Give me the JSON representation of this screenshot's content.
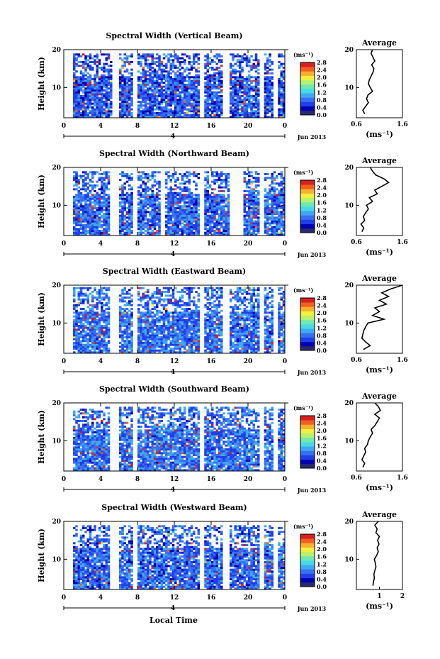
{
  "figure": {
    "xlabel": "Local Time",
    "date_label": "Jun 2013",
    "day_label": "4",
    "ylabel": "Height (km)",
    "average_title": "Average",
    "unit_label": "(ms⁻¹)"
  },
  "colormap": [
    "#2a2a6a",
    "#0000b0",
    "#1f3fe8",
    "#3a6ef0",
    "#40a8f0",
    "#48d8e8",
    "#70e8b0",
    "#b8f070",
    "#f0f040",
    "#f8b030",
    "#f06020",
    "#d82020"
  ],
  "chart_data": [
    {
      "type": "heatmap",
      "title": "Spectral Width (Vertical Beam)",
      "xlabel": "",
      "ylabel": "Height (km)",
      "x_ticks": [
        "0",
        "4",
        "8",
        "12",
        "16",
        "20",
        "0"
      ],
      "y_ticks": [
        "10",
        "20"
      ],
      "xlim": [
        0,
        24
      ],
      "ylim": [
        2,
        20
      ],
      "colorbar": {
        "ticks": [
          "0.0",
          "0.4",
          "0.8",
          "1.2",
          "1.6",
          "2.0",
          "2.4",
          "2.8"
        ],
        "range": [
          0,
          2.8
        ]
      },
      "gaps_hours": [
        [
          0,
          1
        ],
        [
          5.2,
          6.0
        ],
        [
          7.5,
          8.0
        ],
        [
          14.8,
          15.3
        ],
        [
          17.3,
          18.0
        ],
        [
          21.2,
          21.8
        ],
        [
          22.7,
          23.2
        ]
      ],
      "typical_width": 0.7,
      "upper_cutoff_km": 19,
      "average": {
        "xlim": [
          0.6,
          1.6
        ],
        "x_ticks": [
          "0.6",
          "1.6"
        ],
        "y_ticks": [
          "10",
          "20"
        ],
        "heights": [
          3,
          4,
          5,
          6,
          7,
          8,
          9,
          10,
          11,
          12,
          13,
          14,
          15,
          16,
          17,
          18,
          19,
          20
        ],
        "values": [
          0.78,
          0.74,
          0.8,
          0.86,
          0.82,
          0.85,
          0.95,
          0.9,
          0.86,
          0.88,
          0.92,
          0.96,
          0.98,
          0.93,
          1.0,
          0.96,
          0.92,
          0.95
        ]
      }
    },
    {
      "type": "heatmap",
      "title": "Spectral Width (Northward Beam)",
      "xlabel": "",
      "ylabel": "Height (km)",
      "x_ticks": [
        "0",
        "4",
        "8",
        "12",
        "16",
        "20",
        "0"
      ],
      "y_ticks": [
        "10",
        "20"
      ],
      "xlim": [
        0,
        24
      ],
      "ylim": [
        2,
        20
      ],
      "colorbar": {
        "ticks": [
          "0.0",
          "0.4",
          "0.8",
          "1.2",
          "1.6",
          "2.0",
          "2.4",
          "2.8"
        ],
        "range": [
          0,
          2.8
        ]
      },
      "gaps_hours": [
        [
          0,
          1
        ],
        [
          5.0,
          6.0
        ],
        [
          7.5,
          8.0
        ],
        [
          10.5,
          11
        ],
        [
          14.8,
          15.3
        ],
        [
          18.0,
          19.6
        ],
        [
          21.2,
          21.8
        ]
      ],
      "typical_width": 0.75,
      "upper_cutoff_km": 19,
      "average": {
        "xlim": [
          0.6,
          1.6
        ],
        "x_ticks": [
          "0.6",
          "1.6"
        ],
        "y_ticks": [
          "10",
          "20"
        ],
        "heights": [
          3,
          4,
          5,
          6,
          7,
          8,
          9,
          10,
          11,
          12,
          13,
          14,
          15,
          16,
          17,
          18,
          19,
          20
        ],
        "values": [
          0.72,
          0.76,
          0.7,
          0.78,
          0.75,
          0.8,
          0.86,
          0.82,
          0.95,
          0.88,
          1.05,
          1.0,
          1.15,
          1.3,
          1.2,
          1.02,
          0.95,
          0.9
        ]
      }
    },
    {
      "type": "heatmap",
      "title": "Spectral Width (Eastward Beam)",
      "xlabel": "",
      "ylabel": "Height (km)",
      "x_ticks": [
        "0",
        "4",
        "8",
        "12",
        "16",
        "20",
        "0"
      ],
      "y_ticks": [
        "10",
        "20"
      ],
      "xlim": [
        0,
        24
      ],
      "ylim": [
        2,
        20
      ],
      "colorbar": {
        "ticks": [
          "0.0",
          "0.4",
          "0.8",
          "1.2",
          "1.6",
          "2.0",
          "2.4",
          "2.8"
        ],
        "range": [
          0,
          2.8
        ]
      },
      "gaps_hours": [
        [
          0,
          1
        ],
        [
          5.0,
          6.0
        ],
        [
          7.5,
          8.0
        ],
        [
          14.8,
          15.3
        ],
        [
          17.3,
          18.0
        ],
        [
          21.2,
          21.8
        ],
        [
          22.7,
          23.2
        ]
      ],
      "typical_width": 0.8,
      "upper_cutoff_km": 19.5,
      "average": {
        "xlim": [
          0.6,
          1.6
        ],
        "x_ticks": [
          "0.6",
          "1.6"
        ],
        "y_ticks": [
          "10",
          "20"
        ],
        "heights": [
          3,
          4,
          5,
          6,
          7,
          8,
          9,
          10,
          11,
          12,
          13,
          14,
          15,
          16,
          17,
          18,
          19,
          20
        ],
        "values": [
          0.75,
          0.9,
          0.8,
          0.72,
          0.74,
          0.76,
          0.8,
          0.85,
          1.2,
          0.95,
          1.1,
          1.0,
          1.25,
          1.1,
          1.3,
          1.15,
          1.35,
          1.6
        ]
      }
    },
    {
      "type": "heatmap",
      "title": "Spectral Width (Southward Beam)",
      "xlabel": "",
      "ylabel": "Height (km)",
      "x_ticks": [
        "0",
        "4",
        "8",
        "12",
        "16",
        "20",
        "0"
      ],
      "y_ticks": [
        "10",
        "20"
      ],
      "xlim": [
        0,
        24
      ],
      "ylim": [
        2,
        20
      ],
      "colorbar": {
        "ticks": [
          "0.0",
          "0.4",
          "0.8",
          "1.2",
          "1.6",
          "2.0",
          "2.4",
          "2.8"
        ],
        "range": [
          0,
          2.8
        ]
      },
      "gaps_hours": [
        [
          0,
          1
        ],
        [
          5.0,
          6.0
        ],
        [
          7.5,
          8.0
        ],
        [
          14.8,
          15.3
        ],
        [
          21.2,
          21.8
        ],
        [
          22.7,
          23.2
        ]
      ],
      "typical_width": 0.8,
      "upper_cutoff_km": 19,
      "average": {
        "xlim": [
          0.6,
          1.6
        ],
        "x_ticks": [
          "0.6",
          "1.6"
        ],
        "y_ticks": [
          "10",
          "20"
        ],
        "heights": [
          3,
          4,
          5,
          6,
          7,
          8,
          9,
          10,
          11,
          12,
          13,
          14,
          15,
          16,
          17,
          18,
          19,
          20
        ],
        "values": [
          0.74,
          0.78,
          0.72,
          0.76,
          0.8,
          0.78,
          0.84,
          0.86,
          0.9,
          0.95,
          0.92,
          1.0,
          1.05,
          1.1,
          1.0,
          1.12,
          1.08,
          1.0
        ]
      }
    },
    {
      "type": "heatmap",
      "title": "Spectral Width (Westward Beam)",
      "xlabel": "Local Time",
      "ylabel": "Height (km)",
      "x_ticks": [
        "0",
        "4",
        "8",
        "12",
        "16",
        "20",
        "0"
      ],
      "y_ticks": [
        "10",
        "20"
      ],
      "xlim": [
        0,
        24
      ],
      "ylim": [
        2,
        20
      ],
      "colorbar": {
        "ticks": [
          "0.0",
          "0.4",
          "0.8",
          "1.2",
          "1.6",
          "2.0",
          "2.4",
          "2.8"
        ],
        "range": [
          0,
          2.8
        ]
      },
      "gaps_hours": [
        [
          0,
          1
        ],
        [
          5.0,
          6.0
        ],
        [
          7.5,
          8.0
        ],
        [
          14.8,
          15.3
        ],
        [
          17.3,
          18.0
        ],
        [
          21.2,
          21.8
        ],
        [
          22.7,
          23.2
        ]
      ],
      "typical_width": 0.75,
      "upper_cutoff_km": 19,
      "average": {
        "xlim": [
          0,
          2
        ],
        "x_ticks": [
          "1",
          "2"
        ],
        "y_ticks": [
          "10",
          "20"
        ],
        "heights": [
          3,
          4,
          5,
          6,
          7,
          8,
          9,
          10,
          11,
          12,
          13,
          14,
          15,
          16,
          17,
          18,
          19,
          20
        ],
        "values": [
          0.72,
          0.74,
          0.78,
          0.76,
          0.8,
          0.85,
          0.82,
          0.78,
          0.88,
          0.95,
          0.9,
          0.98,
          0.92,
          1.0,
          0.85,
          0.9,
          0.8,
          0.95
        ]
      }
    }
  ]
}
